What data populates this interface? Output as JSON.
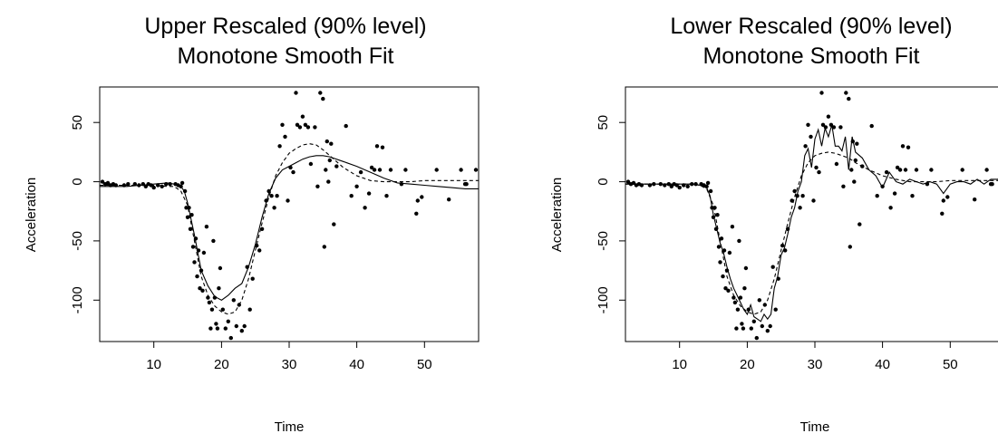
{
  "chart_data": [
    {
      "type": "scatter",
      "title": "Upper Rescaled (90% level)",
      "subtitle": "Monotone Smooth Fit",
      "xlabel": "Time",
      "ylabel": "Acceleration",
      "xlim": [
        2,
        58
      ],
      "ylim": [
        -135,
        80
      ],
      "xticks": [
        10,
        20,
        30,
        40,
        50
      ],
      "yticks": [
        -100,
        -50,
        0,
        50
      ],
      "grid": false,
      "points": [
        [
          2.4,
          0
        ],
        [
          2.8,
          -2
        ],
        [
          3.2,
          -1
        ],
        [
          3.6,
          -3
        ],
        [
          4.0,
          -2
        ],
        [
          4.4,
          -3
        ],
        [
          5.6,
          -3
        ],
        [
          6.2,
          -2
        ],
        [
          7.2,
          -2
        ],
        [
          7.8,
          -3
        ],
        [
          8.4,
          -2
        ],
        [
          8.8,
          -4
        ],
        [
          9.2,
          -2
        ],
        [
          9.6,
          -3
        ],
        [
          10.0,
          -5
        ],
        [
          10.6,
          -3
        ],
        [
          11.2,
          -4
        ],
        [
          11.8,
          -2
        ],
        [
          12.4,
          -2
        ],
        [
          13.2,
          -2
        ],
        [
          13.6,
          -3
        ],
        [
          14.0,
          -4
        ],
        [
          14.2,
          -1
        ],
        [
          14.6,
          -8
        ],
        [
          14.8,
          -22
        ],
        [
          15.0,
          -30
        ],
        [
          15.2,
          -22
        ],
        [
          15.4,
          -40
        ],
        [
          15.6,
          -28
        ],
        [
          15.8,
          -55
        ],
        [
          16.0,
          -68
        ],
        [
          16.2,
          -48
        ],
        [
          16.4,
          -80
        ],
        [
          16.6,
          -58
        ],
        [
          16.8,
          -90
        ],
        [
          17.0,
          -75
        ],
        [
          17.2,
          -92
        ],
        [
          17.4,
          -60
        ],
        [
          17.8,
          -38
        ],
        [
          18.0,
          -98
        ],
        [
          18.2,
          -102
        ],
        [
          18.4,
          -124
        ],
        [
          18.6,
          -108
        ],
        [
          18.8,
          -50
        ],
        [
          19.0,
          -98
        ],
        [
          19.2,
          -120
        ],
        [
          19.4,
          -124
        ],
        [
          19.6,
          -90
        ],
        [
          19.8,
          -73
        ],
        [
          20.2,
          -108
        ],
        [
          20.6,
          -124
        ],
        [
          21.0,
          -118
        ],
        [
          21.4,
          -132
        ],
        [
          21.8,
          -100
        ],
        [
          22.2,
          -122
        ],
        [
          22.6,
          -104
        ],
        [
          23.0,
          -126
        ],
        [
          23.4,
          -122
        ],
        [
          23.8,
          -72
        ],
        [
          24.2,
          -108
        ],
        [
          24.6,
          -82
        ],
        [
          25.2,
          -54
        ],
        [
          25.6,
          -58
        ],
        [
          26.0,
          -40
        ],
        [
          26.6,
          -16
        ],
        [
          27.0,
          -8
        ],
        [
          27.4,
          -12
        ],
        [
          27.8,
          -22
        ],
        [
          28.2,
          -12
        ],
        [
          28.6,
          30
        ],
        [
          29.0,
          48
        ],
        [
          29.4,
          38
        ],
        [
          29.8,
          -16
        ],
        [
          30.2,
          12
        ],
        [
          30.6,
          8
        ],
        [
          31.0,
          75
        ],
        [
          31.2,
          48
        ],
        [
          31.6,
          46
        ],
        [
          32.0,
          55
        ],
        [
          32.4,
          48
        ],
        [
          32.8,
          46
        ],
        [
          33.2,
          15
        ],
        [
          33.8,
          46
        ],
        [
          34.2,
          -4
        ],
        [
          34.6,
          75
        ],
        [
          35.0,
          70
        ],
        [
          35.2,
          -55
        ],
        [
          35.4,
          10
        ],
        [
          35.6,
          34
        ],
        [
          35.8,
          0
        ],
        [
          36.0,
          18
        ],
        [
          36.2,
          32
        ],
        [
          36.6,
          -36
        ],
        [
          37.0,
          13
        ],
        [
          38.4,
          47
        ],
        [
          39.2,
          -12
        ],
        [
          40.0,
          -4
        ],
        [
          40.6,
          8
        ],
        [
          41.2,
          -22
        ],
        [
          41.8,
          -10
        ],
        [
          42.2,
          12
        ],
        [
          42.6,
          10
        ],
        [
          43.0,
          30
        ],
        [
          43.4,
          10
        ],
        [
          43.8,
          29
        ],
        [
          44.4,
          -12
        ],
        [
          45.0,
          10
        ],
        [
          46.6,
          -2
        ],
        [
          47.2,
          10
        ],
        [
          48.8,
          -27
        ],
        [
          49.0,
          -16
        ],
        [
          49.6,
          -13
        ],
        [
          51.8,
          10
        ],
        [
          53.6,
          -15
        ],
        [
          55.4,
          10
        ],
        [
          56.0,
          -2
        ],
        [
          56.2,
          -2
        ],
        [
          57.6,
          10
        ]
      ],
      "series": [
        {
          "name": "",
          "style": "solid",
          "x": [
            2,
            4,
            6,
            8,
            10,
            12,
            13,
            14,
            14.5,
            15,
            16,
            17,
            18,
            19,
            20,
            21,
            22,
            23,
            24,
            25,
            26,
            27,
            28,
            29,
            30,
            31,
            32,
            33,
            34,
            35,
            36,
            38,
            40,
            42,
            44,
            46,
            48,
            50,
            52,
            54,
            56,
            58
          ],
          "y": [
            -4,
            -4,
            -4,
            -3,
            -2,
            -1,
            -2,
            -4,
            -8,
            -18,
            -45,
            -75,
            -88,
            -97,
            -100,
            -96,
            -90,
            -86,
            -72,
            -53,
            -30,
            -10,
            3,
            10,
            13,
            16,
            19,
            21,
            22,
            22,
            21,
            17,
            13,
            8,
            3,
            -1,
            -2,
            -3,
            -4,
            -5,
            -6,
            -6
          ]
        },
        {
          "name": "",
          "style": "dashed",
          "x": [
            2,
            4,
            6,
            8,
            10,
            12,
            13,
            14,
            15,
            16,
            17,
            18,
            19,
            20,
            21,
            22,
            23,
            24,
            25,
            26,
            27,
            28,
            29,
            30,
            31,
            32,
            33,
            34,
            35,
            36,
            38,
            40,
            42,
            44,
            46,
            48,
            50,
            52,
            54,
            56,
            58
          ],
          "y": [
            -3,
            -3,
            -3,
            -3,
            -3,
            -4,
            -4,
            -8,
            -20,
            -50,
            -80,
            -96,
            -105,
            -110,
            -112,
            -110,
            -100,
            -82,
            -58,
            -35,
            -13,
            5,
            16,
            24,
            28,
            31,
            32,
            31,
            27,
            22,
            12,
            5,
            1,
            0,
            0,
            0,
            1,
            1,
            1,
            1,
            1
          ]
        }
      ]
    },
    {
      "type": "scatter",
      "title": "Lower Rescaled (90% level)",
      "subtitle": "Monotone Smooth Fit",
      "xlabel": "Time",
      "ylabel": "Acceleration",
      "xlim": [
        2,
        58
      ],
      "ylim": [
        -135,
        80
      ],
      "xticks": [
        10,
        20,
        30,
        40,
        50
      ],
      "yticks": [
        -100,
        -50,
        0,
        50
      ],
      "grid": false,
      "points": [
        [
          2.4,
          0
        ],
        [
          2.8,
          -2
        ],
        [
          3.2,
          -1
        ],
        [
          3.6,
          -3
        ],
        [
          4.0,
          -2
        ],
        [
          4.4,
          -3
        ],
        [
          5.6,
          -3
        ],
        [
          6.2,
          -2
        ],
        [
          7.2,
          -2
        ],
        [
          7.8,
          -3
        ],
        [
          8.4,
          -2
        ],
        [
          8.8,
          -4
        ],
        [
          9.2,
          -2
        ],
        [
          9.6,
          -3
        ],
        [
          10.0,
          -5
        ],
        [
          10.6,
          -3
        ],
        [
          11.2,
          -4
        ],
        [
          11.8,
          -2
        ],
        [
          12.4,
          -2
        ],
        [
          13.2,
          -2
        ],
        [
          13.6,
          -3
        ],
        [
          14.0,
          -4
        ],
        [
          14.2,
          -1
        ],
        [
          14.6,
          -8
        ],
        [
          14.8,
          -22
        ],
        [
          15.0,
          -30
        ],
        [
          15.2,
          -22
        ],
        [
          15.4,
          -40
        ],
        [
          15.6,
          -28
        ],
        [
          15.8,
          -55
        ],
        [
          16.0,
          -68
        ],
        [
          16.2,
          -48
        ],
        [
          16.4,
          -80
        ],
        [
          16.6,
          -58
        ],
        [
          16.8,
          -90
        ],
        [
          17.0,
          -75
        ],
        [
          17.2,
          -92
        ],
        [
          17.4,
          -60
        ],
        [
          17.8,
          -38
        ],
        [
          18.0,
          -98
        ],
        [
          18.2,
          -102
        ],
        [
          18.4,
          -124
        ],
        [
          18.6,
          -108
        ],
        [
          18.8,
          -50
        ],
        [
          19.0,
          -98
        ],
        [
          19.2,
          -120
        ],
        [
          19.4,
          -124
        ],
        [
          19.6,
          -90
        ],
        [
          19.8,
          -73
        ],
        [
          20.2,
          -108
        ],
        [
          20.6,
          -124
        ],
        [
          21.0,
          -118
        ],
        [
          21.4,
          -132
        ],
        [
          21.8,
          -100
        ],
        [
          22.2,
          -122
        ],
        [
          22.6,
          -104
        ],
        [
          23.0,
          -126
        ],
        [
          23.4,
          -122
        ],
        [
          23.8,
          -72
        ],
        [
          24.2,
          -108
        ],
        [
          24.6,
          -82
        ],
        [
          25.2,
          -54
        ],
        [
          25.6,
          -58
        ],
        [
          26.0,
          -40
        ],
        [
          26.6,
          -16
        ],
        [
          27.0,
          -8
        ],
        [
          27.4,
          -12
        ],
        [
          27.8,
          -22
        ],
        [
          28.2,
          -12
        ],
        [
          28.6,
          30
        ],
        [
          29.0,
          48
        ],
        [
          29.4,
          38
        ],
        [
          29.8,
          -16
        ],
        [
          30.2,
          12
        ],
        [
          30.6,
          8
        ],
        [
          31.0,
          75
        ],
        [
          31.2,
          48
        ],
        [
          31.6,
          46
        ],
        [
          32.0,
          55
        ],
        [
          32.4,
          48
        ],
        [
          32.8,
          46
        ],
        [
          33.2,
          15
        ],
        [
          33.8,
          46
        ],
        [
          34.2,
          -4
        ],
        [
          34.6,
          75
        ],
        [
          35.0,
          70
        ],
        [
          35.2,
          -55
        ],
        [
          35.4,
          10
        ],
        [
          35.6,
          34
        ],
        [
          35.8,
          0
        ],
        [
          36.0,
          18
        ],
        [
          36.2,
          32
        ],
        [
          36.6,
          -36
        ],
        [
          37.0,
          13
        ],
        [
          38.4,
          47
        ],
        [
          39.2,
          -12
        ],
        [
          40.0,
          -4
        ],
        [
          40.6,
          8
        ],
        [
          41.2,
          -22
        ],
        [
          41.8,
          -10
        ],
        [
          42.2,
          12
        ],
        [
          42.6,
          10
        ],
        [
          43.0,
          30
        ],
        [
          43.4,
          10
        ],
        [
          43.8,
          29
        ],
        [
          44.4,
          -12
        ],
        [
          45.0,
          10
        ],
        [
          46.6,
          -2
        ],
        [
          47.2,
          10
        ],
        [
          48.8,
          -27
        ],
        [
          49.0,
          -16
        ],
        [
          49.6,
          -13
        ],
        [
          51.8,
          10
        ],
        [
          53.6,
          -15
        ],
        [
          55.4,
          10
        ],
        [
          56.0,
          -2
        ],
        [
          56.2,
          -2
        ],
        [
          57.6,
          10
        ]
      ],
      "series": [
        {
          "name": "",
          "style": "solid",
          "x": [
            2,
            4,
            6,
            8,
            10,
            12,
            13,
            14,
            14.5,
            15,
            15.5,
            16,
            16.5,
            17,
            17.5,
            18,
            18.5,
            19,
            19.5,
            20,
            20.5,
            21,
            21.5,
            22,
            22.5,
            23,
            23.5,
            24,
            24.5,
            25,
            25.5,
            26,
            26.5,
            27,
            27.5,
            28,
            28.5,
            29,
            29.5,
            30,
            30.5,
            31,
            31.5,
            32,
            32.5,
            33,
            33.5,
            34,
            34.5,
            35,
            35.5,
            36,
            37,
            38,
            39,
            40,
            41,
            42,
            43,
            44,
            45,
            46,
            47,
            48,
            49,
            50,
            51,
            52,
            53,
            54,
            55,
            56,
            57,
            58
          ],
          "y": [
            -2,
            -2,
            -2,
            -2,
            -2,
            -2,
            -3,
            -5,
            -12,
            -28,
            -40,
            -52,
            -60,
            -72,
            -82,
            -90,
            -96,
            -102,
            -108,
            -112,
            -104,
            -114,
            -116,
            -118,
            -112,
            -116,
            -112,
            -90,
            -80,
            -62,
            -56,
            -44,
            -30,
            -22,
            -8,
            0,
            22,
            28,
            12,
            36,
            44,
            30,
            45,
            38,
            48,
            30,
            30,
            26,
            38,
            10,
            38,
            25,
            20,
            10,
            5,
            -5,
            8,
            0,
            -2,
            2,
            0,
            -2,
            0,
            -2,
            -10,
            -2,
            0,
            0,
            -2,
            2,
            -2,
            2,
            2,
            4
          ]
        },
        {
          "name": "",
          "style": "dashed",
          "x": [
            2,
            4,
            6,
            8,
            10,
            12,
            13,
            14,
            15,
            16,
            17,
            18,
            19,
            20,
            21,
            22,
            23,
            24,
            25,
            26,
            27,
            28,
            29,
            30,
            31,
            32,
            33,
            34,
            35,
            36,
            38,
            40,
            42,
            44,
            46,
            48,
            50,
            52,
            54,
            56,
            58
          ],
          "y": [
            -2,
            -2,
            -2,
            -2,
            -2,
            -2,
            -3,
            -6,
            -20,
            -50,
            -80,
            -96,
            -105,
            -110,
            -112,
            -110,
            -100,
            -82,
            -58,
            -35,
            -13,
            5,
            16,
            22,
            24,
            25,
            24,
            22,
            20,
            16,
            10,
            5,
            2,
            0,
            0,
            0,
            1,
            1,
            1,
            1,
            1
          ]
        }
      ]
    }
  ]
}
